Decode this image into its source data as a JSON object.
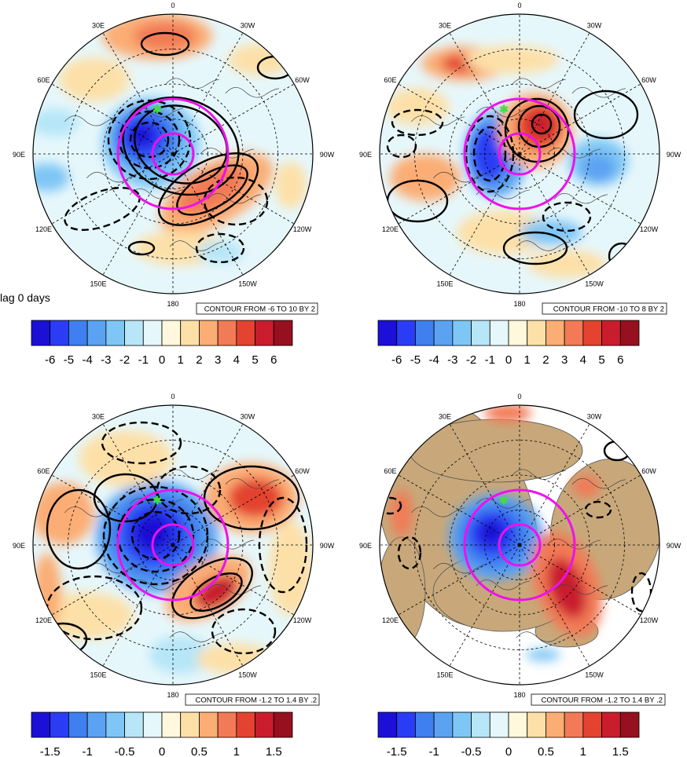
{
  "lag_label": "lag 0 days",
  "panels": [
    {
      "lon_labels": [
        "0",
        "30W",
        "60W",
        "90W",
        "120W",
        "150W",
        "180",
        "150E",
        "120E",
        "90E",
        "60E",
        "30E"
      ],
      "contour_info": "CONTOUR FROM -6 TO 10 BY 2",
      "colorbar_labels": [
        "-6",
        "-5",
        "-4",
        "-3",
        "-2",
        "-1",
        "0",
        "1",
        "2",
        "3",
        "4",
        "5",
        "6"
      ],
      "land_fill": false
    },
    {
      "lon_labels": [
        "0",
        "30W",
        "60W",
        "90W",
        "120W",
        "150W",
        "180",
        "150E",
        "120E",
        "90E",
        "60E",
        "30E"
      ],
      "contour_info": "CONTOUR FROM -10 TO 8 BY 2",
      "colorbar_labels": [
        "-6",
        "-5",
        "-4",
        "-3",
        "-2",
        "-1",
        "0",
        "1",
        "2",
        "3",
        "4",
        "5",
        "6"
      ],
      "land_fill": false
    },
    {
      "lon_labels": [
        "0",
        "30W",
        "60W",
        "90W",
        "120W",
        "150W",
        "180",
        "150E",
        "120E",
        "90E",
        "60E",
        "30E"
      ],
      "contour_info": "CONTOUR FROM -1.2 TO 1.4 BY .2",
      "colorbar_labels": [
        "-1.5",
        "-1",
        "-0.5",
        "0",
        "0.5",
        "1",
        "1.5"
      ],
      "land_fill": false
    },
    {
      "lon_labels": [
        "0",
        "30W",
        "60W",
        "90W",
        "120W",
        "150W",
        "180",
        "150E",
        "120E",
        "90E",
        "60E",
        "30E"
      ],
      "contour_info": "CONTOUR FROM -1.2 TO 1.4 BY .2",
      "colorbar_labels": [
        "-1.5",
        "-1",
        "-0.5",
        "0",
        "0.5",
        "1",
        "1.5"
      ],
      "land_fill": true
    }
  ],
  "colors": {
    "colorbar": [
      "#1c0fd6",
      "#2a3df5",
      "#3f7fef",
      "#5ba3f2",
      "#7ec6f5",
      "#b6e6f8",
      "#e6f7fb",
      "#fff8dc",
      "#fde0a8",
      "#fbad74",
      "#f27a56",
      "#e3432f",
      "#c91d2d",
      "#96101f"
    ],
    "circle": "#ee11ee",
    "land": "#c8a87a",
    "marker": "#44dd44"
  }
}
